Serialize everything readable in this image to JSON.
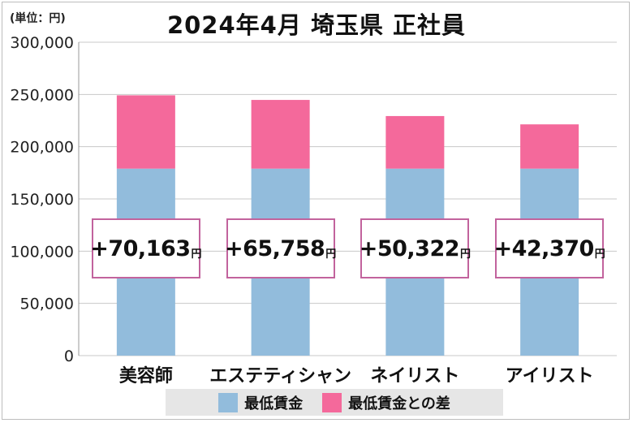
{
  "unit_label": "(単位：円)",
  "chart_data": {
    "type": "bar",
    "stacked": true,
    "title": "2024年4月 埼玉県 正社員",
    "categories": [
      "美容師",
      "エステティシャン",
      "ネイリスト",
      "アイリスト"
    ],
    "series": [
      {
        "name": "最低賃金",
        "color": "#92bcdc",
        "values": [
          179000,
          179000,
          179000,
          179000
        ]
      },
      {
        "name": "最低賃金との差",
        "color": "#f4699b",
        "values": [
          70163,
          65758,
          50322,
          42370
        ]
      }
    ],
    "ylim": [
      0,
      300000
    ],
    "yticks": [
      0,
      50000,
      100000,
      150000,
      200000,
      250000,
      300000
    ],
    "ytick_labels": [
      "0",
      "50,000",
      "100,000",
      "150,000",
      "200,000",
      "250,000",
      "300,000"
    ],
    "grid": true,
    "legend_position": "bottom",
    "annotations": [
      {
        "value": "+70,163",
        "unit": "円"
      },
      {
        "value": "+65,758",
        "unit": "円"
      },
      {
        "value": "+50,322",
        "unit": "円"
      },
      {
        "value": "+42,370",
        "unit": "円"
      }
    ]
  }
}
